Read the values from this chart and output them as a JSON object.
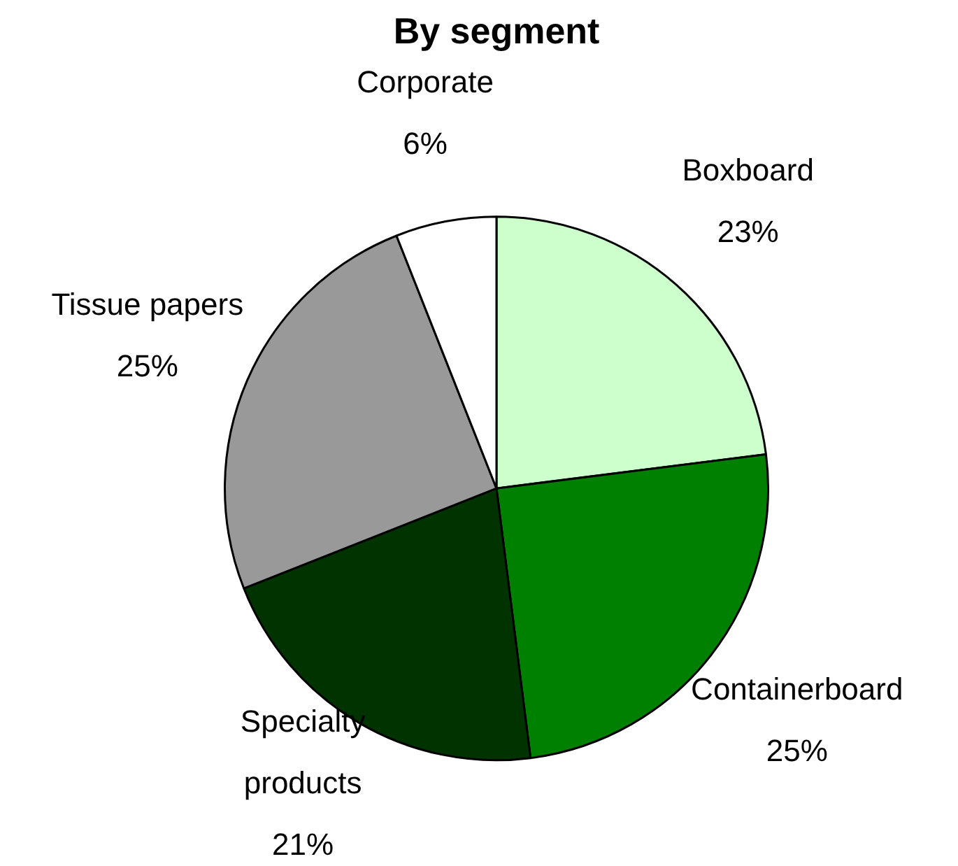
{
  "chart_data": {
    "type": "pie",
    "title": "By segment",
    "categories": [
      "Boxboard",
      "Containerboard",
      "Specialty products",
      "Tissue papers",
      "Corporate"
    ],
    "values": [
      23,
      25,
      21,
      25,
      6
    ],
    "value_labels": [
      "23%",
      "25%",
      "21%",
      "25%",
      "6%"
    ],
    "colors": [
      "#ccffcc",
      "#008000",
      "#003300",
      "#999999",
      "#ffffff"
    ],
    "legend": false
  }
}
